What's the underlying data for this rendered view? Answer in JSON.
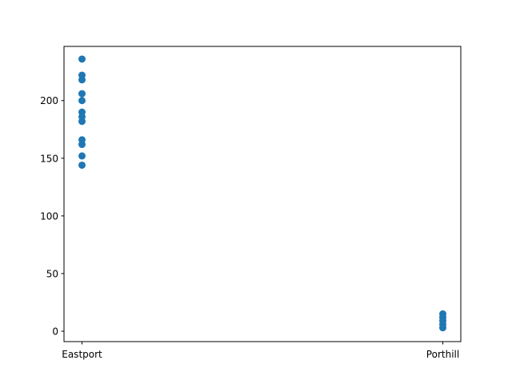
{
  "chart_data": {
    "type": "scatter",
    "title": "",
    "xlabel": "",
    "ylabel": "",
    "categories": [
      "Eastport",
      "Porthill"
    ],
    "ylim": [
      -9,
      247
    ],
    "yticks": [
      0,
      50,
      100,
      150,
      200
    ],
    "grid": false,
    "legend": "none",
    "marker_color": "#1f77b4",
    "series": [
      {
        "points": [
          {
            "x": "Eastport",
            "y": 236
          },
          {
            "x": "Eastport",
            "y": 222
          },
          {
            "x": "Eastport",
            "y": 218
          },
          {
            "x": "Eastport",
            "y": 206
          },
          {
            "x": "Eastport",
            "y": 200
          },
          {
            "x": "Eastport",
            "y": 190
          },
          {
            "x": "Eastport",
            "y": 186
          },
          {
            "x": "Eastport",
            "y": 182
          },
          {
            "x": "Eastport",
            "y": 166
          },
          {
            "x": "Eastport",
            "y": 162
          },
          {
            "x": "Eastport",
            "y": 152
          },
          {
            "x": "Eastport",
            "y": 144
          },
          {
            "x": "Porthill",
            "y": 15
          },
          {
            "x": "Porthill",
            "y": 12
          },
          {
            "x": "Porthill",
            "y": 9
          },
          {
            "x": "Porthill",
            "y": 6
          },
          {
            "x": "Porthill",
            "y": 3
          }
        ]
      }
    ]
  }
}
